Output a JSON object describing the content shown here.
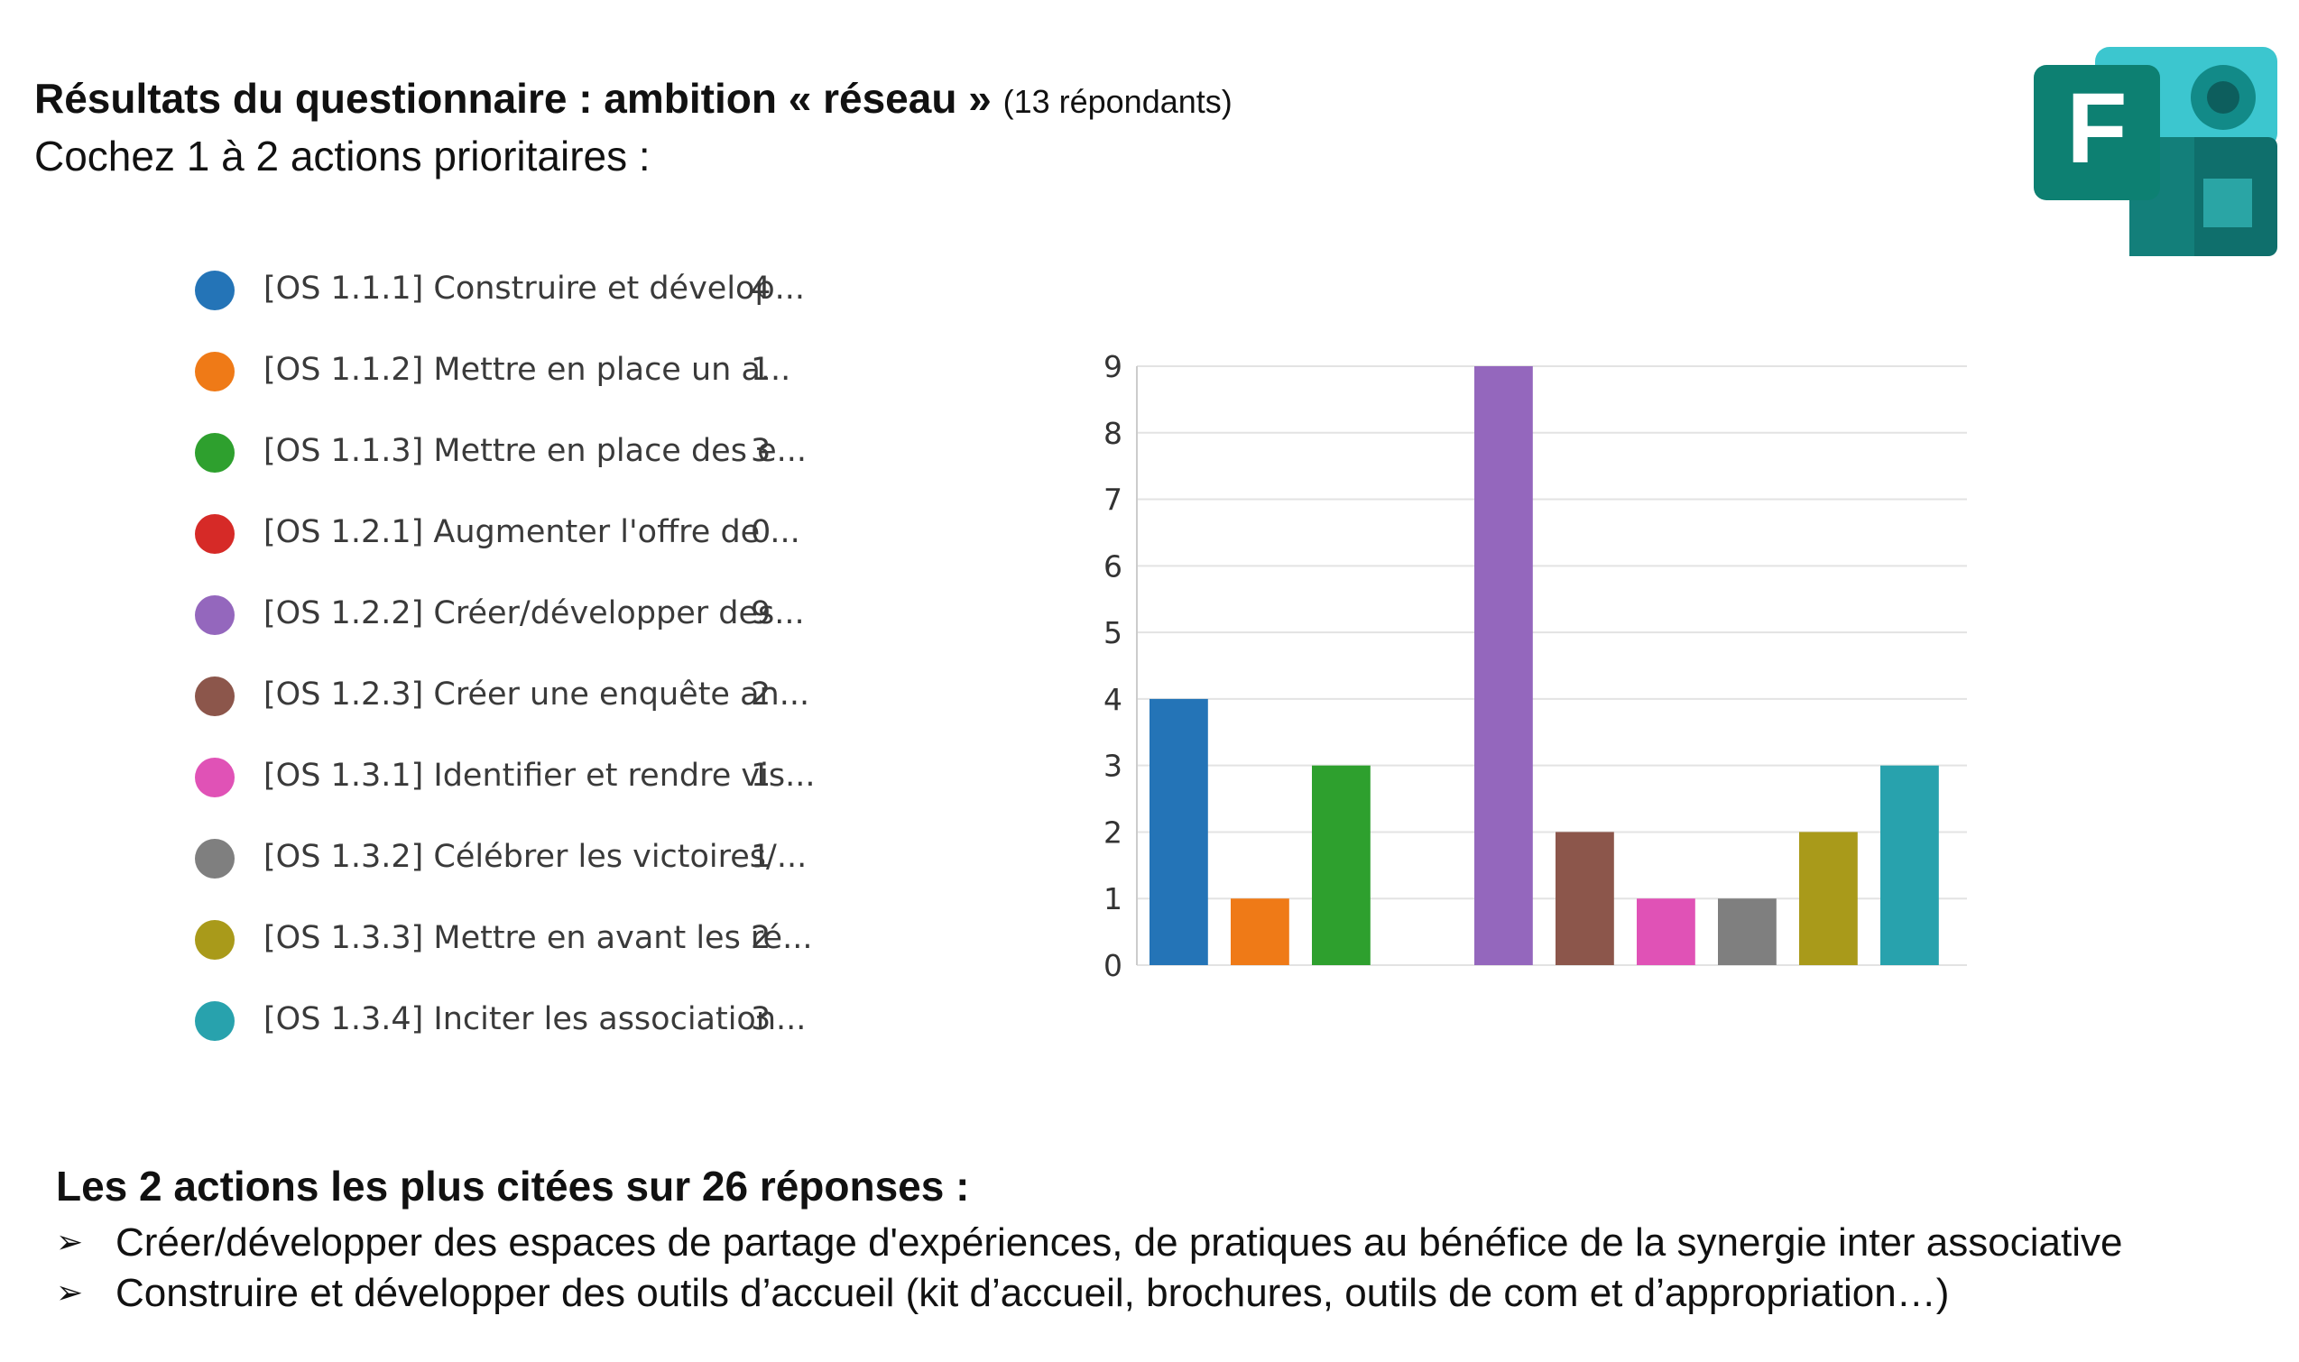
{
  "header": {
    "title_main": "Résultats du questionnaire : ambition « réseau »",
    "title_respondents": "(13 répondants)",
    "subtitle": "Cochez 1 à 2 actions prioritaires :"
  },
  "logo": {
    "letter": "F",
    "icon": "microsoft-forms-logo"
  },
  "legend": [
    {
      "label": "[OS 1.1.1] Construire et dévelop...",
      "count": "4",
      "color": "#2474b7"
    },
    {
      "label": "[OS 1.1.2] Mettre en place un a...",
      "count": "1",
      "color": "#ef7a17"
    },
    {
      "label": "[OS 1.1.3] Mettre en place des e...",
      "count": "3",
      "color": "#2ea02e"
    },
    {
      "label": "[OS 1.2.1] Augmenter l'offre de ...",
      "count": "0",
      "color": "#d62a27"
    },
    {
      "label": "[OS 1.2.2] Créer/développer des...",
      "count": "9",
      "color": "#9467bd"
    },
    {
      "label": "[OS 1.2.3] Créer une enquête an...",
      "count": "2",
      "color": "#8c564b"
    },
    {
      "label": "[OS 1.3.1] Identifier et rendre vis...",
      "count": "1",
      "color": "#e052b6"
    },
    {
      "label": "[OS 1.3.2] Célébrer les victoires/...",
      "count": "1",
      "color": "#7f7f7f"
    },
    {
      "label": "[OS 1.3.3] Mettre en avant les ré...",
      "count": "2",
      "color": "#a99a1a"
    },
    {
      "label": "[OS 1.3.4] Inciter les association...",
      "count": "3",
      "color": "#28a2ad"
    }
  ],
  "chart_data": {
    "type": "bar",
    "categories": [
      "[OS 1.1.1]",
      "[OS 1.1.2]",
      "[OS 1.1.3]",
      "[OS 1.2.1]",
      "[OS 1.2.2]",
      "[OS 1.2.3]",
      "[OS 1.3.1]",
      "[OS 1.3.2]",
      "[OS 1.3.3]",
      "[OS 1.3.4]"
    ],
    "values": [
      4,
      1,
      3,
      0,
      9,
      2,
      1,
      1,
      2,
      3
    ],
    "colors": [
      "#2474b7",
      "#ef7a17",
      "#2ea02e",
      "#d62a27",
      "#9467bd",
      "#8c564b",
      "#e052b6",
      "#7f7f7f",
      "#a99a1a",
      "#28a2ad"
    ],
    "yticks": [
      "0",
      "1",
      "2",
      "3",
      "4",
      "5",
      "6",
      "7",
      "8",
      "9"
    ],
    "ylim": [
      0,
      9
    ],
    "grid": true,
    "legend_placement": "left"
  },
  "summary": {
    "heading": "Les 2 actions les plus citées sur 26 réponses :",
    "bullet_symbol": "➢",
    "items": [
      "Créer/développer des espaces de partage d'expériences, de pratiques au bénéfice de la synergie inter associative",
      "Construire et développer des outils d’accueil (kit d’accueil, brochures, outils de com et d’appropriation…)"
    ]
  }
}
